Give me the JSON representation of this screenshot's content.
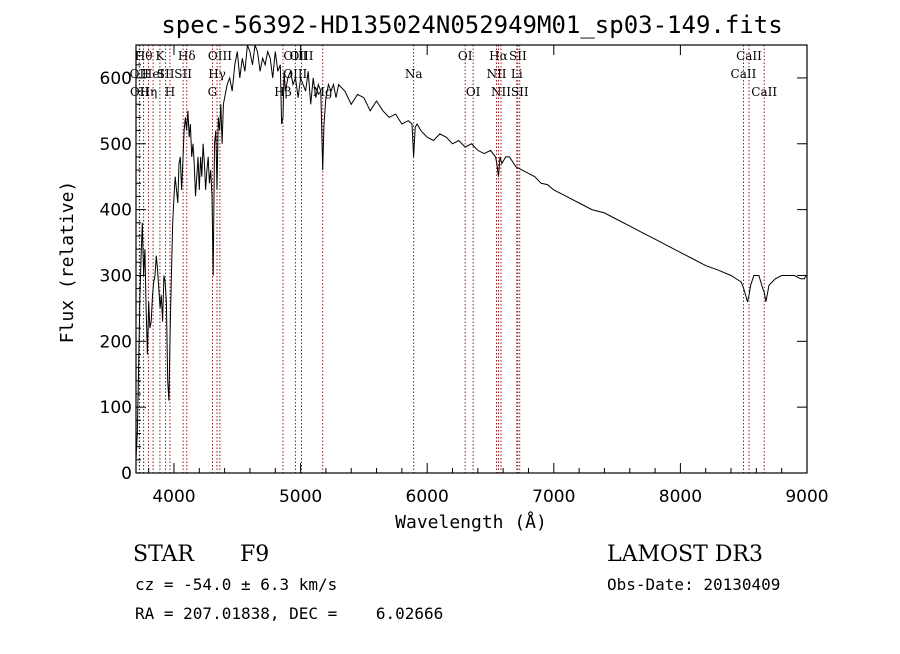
{
  "header": {
    "title": "spec-56392-HD135024N052949M01_sp03-149.fits"
  },
  "info": {
    "object_class": "STAR",
    "subclass": "F9",
    "survey": "LAMOST DR3",
    "redshift": "cz = -54.0 ± 6.3 km/s",
    "obs_date": "Obs-Date: 20130409",
    "coords": "RA = 207.01838, DEC =    6.02666"
  },
  "colors": {
    "spectrum": "#000000",
    "line_marker": "#8b0000",
    "axis": "#000000"
  },
  "chart_data": {
    "type": "line",
    "title": "spec-56392-HD135024N052949M01_sp03-149.fits",
    "xlabel": "Wavelength (Å)",
    "ylabel": "Flux (relative)",
    "xlim": [
      3700,
      9000
    ],
    "ylim": [
      0,
      650
    ],
    "xticks": [
      4000,
      5000,
      6000,
      7000,
      8000,
      9000
    ],
    "yticks": [
      0,
      100,
      200,
      300,
      400,
      500,
      600
    ],
    "series": [
      {
        "name": "flux",
        "x": [
          3700,
          3710,
          3720,
          3730,
          3740,
          3750,
          3760,
          3770,
          3780,
          3790,
          3800,
          3810,
          3820,
          3830,
          3840,
          3850,
          3860,
          3870,
          3880,
          3890,
          3900,
          3910,
          3920,
          3930,
          3940,
          3950,
          3960,
          3970,
          3980,
          3990,
          4000,
          4010,
          4020,
          4030,
          4040,
          4050,
          4060,
          4070,
          4080,
          4090,
          4100,
          4110,
          4120,
          4130,
          4140,
          4150,
          4160,
          4170,
          4180,
          4190,
          4200,
          4210,
          4220,
          4230,
          4240,
          4250,
          4260,
          4270,
          4280,
          4290,
          4300,
          4310,
          4320,
          4330,
          4340,
          4350,
          4360,
          4370,
          4380,
          4390,
          4400,
          4420,
          4440,
          4460,
          4480,
          4500,
          4520,
          4540,
          4560,
          4580,
          4600,
          4620,
          4640,
          4660,
          4680,
          4700,
          4720,
          4740,
          4760,
          4780,
          4800,
          4820,
          4840,
          4850,
          4861,
          4870,
          4880,
          4900,
          4920,
          4940,
          4960,
          4980,
          5000,
          5020,
          5040,
          5060,
          5080,
          5100,
          5120,
          5140,
          5160,
          5175,
          5185,
          5200,
          5220,
          5240,
          5260,
          5280,
          5300,
          5350,
          5400,
          5450,
          5500,
          5550,
          5600,
          5650,
          5700,
          5750,
          5800,
          5850,
          5880,
          5893,
          5905,
          5920,
          5950,
          6000,
          6050,
          6100,
          6150,
          6200,
          6250,
          6300,
          6350,
          6400,
          6450,
          6500,
          6540,
          6550,
          6563,
          6575,
          6590,
          6620,
          6650,
          6700,
          6750,
          6800,
          6850,
          6900,
          6950,
          7000,
          7100,
          7200,
          7300,
          7400,
          7500,
          7600,
          7700,
          7800,
          7900,
          8000,
          8100,
          8200,
          8300,
          8400,
          8480,
          8500,
          8530,
          8542,
          8555,
          8580,
          8620,
          8650,
          8662,
          8675,
          8700,
          8750,
          8800,
          8850,
          8900,
          8950,
          8980,
          8990,
          9000
        ],
        "y": [
          20,
          60,
          150,
          260,
          330,
          380,
          300,
          340,
          250,
          180,
          260,
          220,
          230,
          270,
          290,
          300,
          330,
          310,
          280,
          250,
          270,
          230,
          300,
          290,
          260,
          140,
          110,
          220,
          300,
          380,
          420,
          450,
          430,
          410,
          470,
          480,
          430,
          470,
          520,
          540,
          520,
          550,
          510,
          530,
          480,
          500,
          470,
          420,
          450,
          480,
          430,
          480,
          450,
          500,
          470,
          430,
          460,
          480,
          440,
          460,
          420,
          300,
          500,
          520,
          430,
          540,
          520,
          560,
          500,
          560,
          570,
          590,
          600,
          580,
          620,
          640,
          600,
          630,
          610,
          650,
          640,
          620,
          650,
          640,
          610,
          630,
          620,
          640,
          630,
          600,
          640,
          610,
          620,
          530,
          540,
          610,
          580,
          600,
          610,
          590,
          600,
          570,
          600,
          590,
          580,
          610,
          560,
          600,
          570,
          590,
          580,
          460,
          530,
          570,
          590,
          580,
          590,
          570,
          590,
          580,
          560,
          575,
          570,
          550,
          565,
          550,
          540,
          545,
          530,
          535,
          530,
          480,
          525,
          530,
          520,
          510,
          505,
          515,
          510,
          500,
          505,
          495,
          500,
          490,
          485,
          490,
          480,
          470,
          450,
          480,
          470,
          480,
          480,
          465,
          460,
          455,
          450,
          440,
          438,
          430,
          420,
          410,
          400,
          395,
          385,
          375,
          365,
          355,
          345,
          335,
          325,
          315,
          308,
          300,
          290,
          280,
          260,
          270,
          285,
          300,
          300,
          280,
          275,
          260,
          285,
          295,
          300,
          300,
          300,
          295,
          295,
          300,
          299
        ]
      }
    ],
    "line_markers": [
      {
        "wavelength": 3760,
        "label": "Hθ",
        "row": 0
      },
      {
        "wavelength": 3726,
        "label": "OII",
        "row": 1
      },
      {
        "wavelength": 3729,
        "label": "OII",
        "row": 2
      },
      {
        "wavelength": 3798,
        "label": "Hη",
        "row": 2
      },
      {
        "wavelength": 3835,
        "label": "HeI",
        "row": 1
      },
      {
        "wavelength": 3889,
        "label": "K",
        "row": 0
      },
      {
        "wavelength": 3934,
        "label": "SII",
        "row": 1
      },
      {
        "wavelength": 3968,
        "label": "H",
        "row": 2
      },
      {
        "wavelength": 4101,
        "label": "Hδ",
        "row": 0
      },
      {
        "wavelength": 4072,
        "label": "SII",
        "row": 1
      },
      {
        "wavelength": 4363,
        "label": "OIII",
        "row": 0
      },
      {
        "wavelength": 4340,
        "label": "Hγ",
        "row": 1
      },
      {
        "wavelength": 4304,
        "label": "G",
        "row": 2
      },
      {
        "wavelength": 4861,
        "label": "Hβ",
        "row": 2
      },
      {
        "wavelength": 4959,
        "label": "OIII",
        "row": 0
      },
      {
        "wavelength": 4958,
        "label": "OIII",
        "row": 1
      },
      {
        "wavelength": 5007,
        "label": "OIII",
        "row": 0
      },
      {
        "wavelength": 5175,
        "label": "Mg",
        "row": 2
      },
      {
        "wavelength": 5893,
        "label": "Na",
        "row": 1
      },
      {
        "wavelength": 6300,
        "label": "OI",
        "row": 0
      },
      {
        "wavelength": 6363,
        "label": "OI",
        "row": 2
      },
      {
        "wavelength": 6563,
        "label": "Hα",
        "row": 0
      },
      {
        "wavelength": 6548,
        "label": "NII",
        "row": 1
      },
      {
        "wavelength": 6583,
        "label": "NII",
        "row": 2
      },
      {
        "wavelength": 6716,
        "label": "SII",
        "row": 0
      },
      {
        "wavelength": 6708,
        "label": "Li",
        "row": 1
      },
      {
        "wavelength": 6731,
        "label": "SII",
        "row": 2
      },
      {
        "wavelength": 8542,
        "label": "CaII",
        "row": 0
      },
      {
        "wavelength": 8498,
        "label": "CaII",
        "row": 1
      },
      {
        "wavelength": 8662,
        "label": "CaII",
        "row": 2
      }
    ]
  }
}
